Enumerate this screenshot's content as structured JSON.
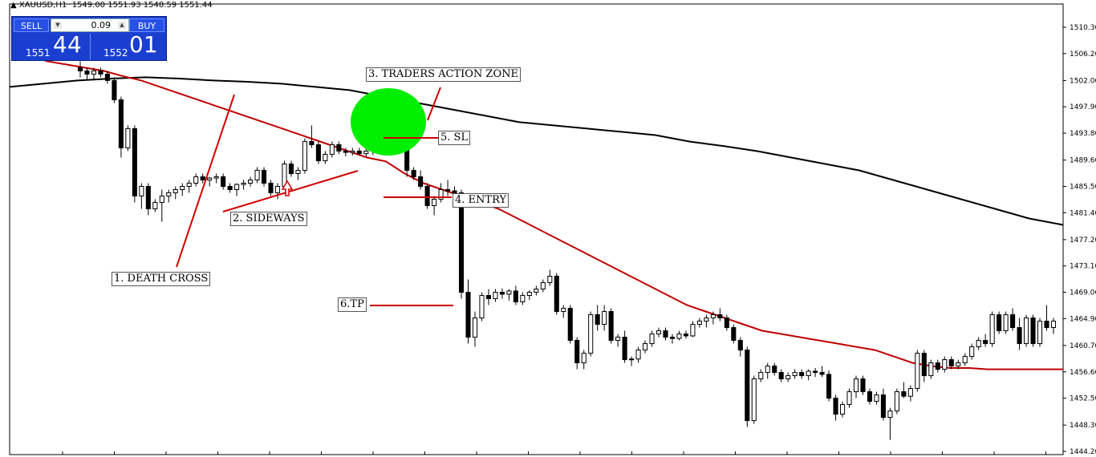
{
  "info": {
    "symbol": "XAUUSD,H1",
    "ohlc": "1549.00 1551.93 1548.59 1551.44"
  },
  "trade_panel": {
    "sell_label": "SELL",
    "buy_label": "BUY",
    "lot": "0.09",
    "bid_small": "1551",
    "bid_big": "44",
    "ask_small": "1552",
    "ask_big": "01"
  },
  "annotations": {
    "death_cross": "1. DEATH CROSS",
    "sideways": "2. SIDEWAYS",
    "action_zone": "3. TRADERS ACTION ZONE",
    "entry": "4. ENTRY",
    "sl": "5. SL",
    "tp": "6.TP"
  },
  "colors": {
    "background": "#ffffff",
    "candle": "#000000",
    "ma_fast": "#c00000",
    "ma_slow": "#000000",
    "zone": "#00ee00",
    "annotation_line": "#d00000"
  },
  "chart_data": {
    "type": "candlestick",
    "symbol": "XAUUSD",
    "timeframe": "H1",
    "ylim": [
      1444.2,
      1512.5
    ],
    "y_ticks": [
      "1510.30",
      "1506.20",
      "1502.00",
      "1497.90",
      "1493.80",
      "1489.60",
      "1485.50",
      "1481.40",
      "1477.20",
      "1473.10",
      "1469.00",
      "1464.90",
      "1460.70",
      "1456.60",
      "1452.50",
      "1448.30",
      "1444.20"
    ],
    "candles": [
      [
        1504,
        1505,
        1502.5,
        1503.5
      ],
      [
        1503.5,
        1504,
        1502,
        1503
      ],
      [
        1503,
        1504,
        1502,
        1503.5
      ],
      [
        1503.5,
        1504,
        1502.5,
        1503
      ],
      [
        1503,
        1503.5,
        1501.5,
        1502
      ],
      [
        1502,
        1502.5,
        1498.5,
        1499
      ],
      [
        1499,
        1499.5,
        1490,
        1491.5
      ],
      [
        1491.5,
        1495,
        1491,
        1494.5
      ],
      [
        1494.5,
        1495,
        1483,
        1484
      ],
      [
        1484,
        1486,
        1482,
        1485.5
      ],
      [
        1485.5,
        1486,
        1481,
        1482
      ],
      [
        1482,
        1483.5,
        1481.5,
        1483
      ],
      [
        1483,
        1485,
        1480,
        1484
      ],
      [
        1484,
        1485,
        1483,
        1484.5
      ],
      [
        1484.5,
        1485.5,
        1483.5,
        1485
      ],
      [
        1485,
        1486,
        1484,
        1485.5
      ],
      [
        1485.5,
        1486.5,
        1484.5,
        1486
      ],
      [
        1486,
        1487.5,
        1485.5,
        1487
      ],
      [
        1487,
        1487.5,
        1486,
        1486.5
      ],
      [
        1486.5,
        1487,
        1485.5,
        1486.8
      ],
      [
        1486.8,
        1487.5,
        1486,
        1487
      ],
      [
        1487,
        1487.5,
        1485,
        1485.5
      ],
      [
        1485.5,
        1486,
        1484.5,
        1485
      ],
      [
        1485,
        1486,
        1484,
        1485.8
      ],
      [
        1485.8,
        1486.5,
        1485,
        1486
      ],
      [
        1486,
        1487,
        1485.5,
        1486.5
      ],
      [
        1486.5,
        1488.5,
        1486,
        1488
      ],
      [
        1488,
        1488.5,
        1485.5,
        1486
      ],
      [
        1486,
        1486.5,
        1484,
        1484.5
      ],
      [
        1484.5,
        1486,
        1483.5,
        1485.5
      ],
      [
        1485.5,
        1489.5,
        1485,
        1489
      ],
      [
        1489,
        1489.5,
        1487,
        1487.5
      ],
      [
        1487.5,
        1488.5,
        1486.5,
        1488
      ],
      [
        1488,
        1493,
        1487.5,
        1492.5
      ],
      [
        1492.5,
        1495,
        1491.5,
        1492
      ],
      [
        1492,
        1492.5,
        1489,
        1489.5
      ],
      [
        1489.5,
        1491,
        1489,
        1490.5
      ],
      [
        1490.5,
        1492.5,
        1490,
        1492
      ],
      [
        1492,
        1492.5,
        1490.5,
        1491
      ],
      [
        1491,
        1491.5,
        1490.2,
        1490.8
      ],
      [
        1490.8,
        1491.5,
        1490.3,
        1491
      ],
      [
        1491,
        1491.5,
        1490.3,
        1490.6
      ],
      [
        1490.6,
        1491.4,
        1490.2,
        1491
      ],
      [
        1491,
        1491.6,
        1490.4,
        1491.3
      ],
      [
        1491.3,
        1491.8,
        1490.6,
        1491.5
      ],
      [
        1491.5,
        1492,
        1490.8,
        1491.2
      ],
      [
        1491.2,
        1492.2,
        1490.6,
        1491.8
      ],
      [
        1491.8,
        1492.5,
        1491,
        1492.1
      ],
      [
        1492.1,
        1493,
        1487,
        1488
      ],
      [
        1488,
        1488.5,
        1486.5,
        1487
      ],
      [
        1487,
        1488,
        1485,
        1485.5
      ],
      [
        1485.5,
        1486,
        1482,
        1482.5
      ],
      [
        1482.5,
        1484,
        1481,
        1483.5
      ],
      [
        1483.5,
        1486,
        1483,
        1485
      ],
      [
        1485,
        1486.5,
        1484,
        1484.8
      ],
      [
        1484.8,
        1485.5,
        1483.8,
        1484.5
      ],
      [
        1484.5,
        1485,
        1468,
        1469
      ],
      [
        1469,
        1471,
        1461,
        1462
      ],
      [
        1462,
        1466,
        1460.5,
        1465
      ],
      [
        1465,
        1469,
        1464.5,
        1468.5
      ],
      [
        1468.5,
        1469.5,
        1467,
        1468
      ],
      [
        1468,
        1469.5,
        1467.5,
        1469
      ],
      [
        1469,
        1469.6,
        1468,
        1468.7
      ],
      [
        1468.7,
        1469.5,
        1467.7,
        1469.2
      ],
      [
        1469.2,
        1470,
        1467,
        1467.5
      ],
      [
        1467.5,
        1469,
        1467,
        1468.5
      ],
      [
        1468.5,
        1469.3,
        1467.8,
        1469
      ],
      [
        1469,
        1470,
        1468.5,
        1469.5
      ],
      [
        1469.5,
        1471,
        1469,
        1470.5
      ],
      [
        1470.5,
        1472.5,
        1470,
        1471.5
      ],
      [
        1471.5,
        1472,
        1465.5,
        1466
      ],
      [
        1466,
        1467,
        1465,
        1466.5
      ],
      [
        1466.5,
        1467,
        1461,
        1461.5
      ],
      [
        1461.5,
        1462,
        1457,
        1458
      ],
      [
        1458,
        1460,
        1457,
        1459.5
      ],
      [
        1459.5,
        1466,
        1459,
        1465.5
      ],
      [
        1465.5,
        1467,
        1463,
        1464
      ],
      [
        1464,
        1467,
        1463,
        1466
      ],
      [
        1466,
        1466.5,
        1461,
        1461.5
      ],
      [
        1461.5,
        1462.5,
        1460.5,
        1462
      ],
      [
        1462,
        1463,
        1458,
        1458.5
      ],
      [
        1458.5,
        1459,
        1457.5,
        1458.6
      ],
      [
        1458.6,
        1460.5,
        1458,
        1460
      ],
      [
        1460,
        1461.5,
        1459.5,
        1461
      ],
      [
        1461,
        1463,
        1460.5,
        1462.5
      ],
      [
        1462.5,
        1463.5,
        1462,
        1463
      ],
      [
        1463,
        1463.5,
        1461.5,
        1462
      ],
      [
        1462,
        1462.5,
        1461,
        1461.8
      ],
      [
        1461.8,
        1463,
        1461.5,
        1462.5
      ],
      [
        1462.5,
        1463,
        1461.8,
        1462.2
      ],
      [
        1462.2,
        1464.5,
        1462,
        1464
      ],
      [
        1464,
        1465,
        1463.5,
        1464.5
      ],
      [
        1464.5,
        1465.5,
        1463.5,
        1465
      ],
      [
        1465,
        1466,
        1464,
        1465.5
      ],
      [
        1465.5,
        1466.5,
        1464.5,
        1465
      ],
      [
        1465,
        1465.5,
        1463,
        1463.5
      ],
      [
        1463.5,
        1464,
        1461,
        1461.5
      ],
      [
        1461.5,
        1462,
        1459,
        1460
      ],
      [
        1460,
        1460.5,
        1448,
        1449
      ],
      [
        1449,
        1456,
        1448.5,
        1455.5
      ],
      [
        1455.5,
        1457,
        1455,
        1456.5
      ],
      [
        1456.5,
        1458,
        1455.5,
        1457.5
      ],
      [
        1457.5,
        1458,
        1456,
        1456.5
      ],
      [
        1456.5,
        1457,
        1455,
        1455.5
      ],
      [
        1455.5,
        1456.5,
        1455,
        1456
      ],
      [
        1456,
        1457,
        1455.5,
        1456.5
      ],
      [
        1456.5,
        1457,
        1455.5,
        1456
      ],
      [
        1456,
        1457,
        1455.3,
        1456.7
      ],
      [
        1456.7,
        1457.2,
        1455.8,
        1456.5
      ],
      [
        1456.5,
        1457.5,
        1455.8,
        1456.2
      ],
      [
        1456.2,
        1456.8,
        1452,
        1452.5
      ],
      [
        1452.5,
        1453,
        1449,
        1450
      ],
      [
        1450,
        1452,
        1449.5,
        1451.5
      ],
      [
        1451.5,
        1454,
        1451,
        1453.5
      ],
      [
        1453.5,
        1456,
        1452.5,
        1455.5
      ],
      [
        1455.5,
        1456,
        1453,
        1453.5
      ],
      [
        1453.5,
        1454,
        1451.5,
        1452
      ],
      [
        1452,
        1453.5,
        1451.5,
        1453
      ],
      [
        1453,
        1454,
        1449,
        1449.5
      ],
      [
        1449.5,
        1451,
        1446,
        1450.5
      ],
      [
        1450.5,
        1454,
        1450,
        1453.5
      ],
      [
        1453.5,
        1455,
        1452.5,
        1452.8
      ],
      [
        1452.8,
        1454.5,
        1452,
        1454
      ],
      [
        1454,
        1460,
        1453.5,
        1459.5
      ],
      [
        1459.5,
        1460,
        1455,
        1456
      ],
      [
        1456,
        1458.5,
        1455.5,
        1458
      ],
      [
        1458,
        1458.5,
        1456.5,
        1457
      ],
      [
        1457,
        1459,
        1456.5,
        1458.5
      ],
      [
        1458.5,
        1459,
        1457,
        1457.5
      ],
      [
        1457.5,
        1458.5,
        1457,
        1458
      ],
      [
        1458,
        1459.5,
        1457.5,
        1459
      ],
      [
        1459,
        1461,
        1458.5,
        1460.5
      ],
      [
        1460.5,
        1462,
        1460,
        1461.5
      ],
      [
        1461.5,
        1462.5,
        1460.5,
        1461
      ],
      [
        1461,
        1466,
        1460.5,
        1465.5
      ],
      [
        1465.5,
        1466,
        1462.5,
        1463
      ],
      [
        1463,
        1466,
        1462.5,
        1465.5
      ],
      [
        1465.5,
        1466.5,
        1463,
        1463.5
      ],
      [
        1463.5,
        1465,
        1460,
        1461
      ],
      [
        1461,
        1465.5,
        1460.5,
        1465
      ],
      [
        1465,
        1465.5,
        1460.5,
        1461
      ],
      [
        1461,
        1465,
        1460.5,
        1464.5
      ],
      [
        1464.5,
        1467,
        1463,
        1463.5
      ],
      [
        1463.5,
        1465,
        1462.5,
        1464.5
      ]
    ],
    "ma_fast": [
      [
        1,
        1506
      ],
      [
        2,
        1505
      ],
      [
        3,
        1504.5
      ],
      [
        4,
        1504
      ],
      [
        5,
        1503.5
      ],
      [
        6,
        1502.7
      ],
      [
        7,
        1502
      ],
      [
        8,
        1501
      ],
      [
        9,
        1500
      ],
      [
        10,
        1499
      ],
      [
        11,
        1498
      ],
      [
        12,
        1497
      ],
      [
        13,
        1496
      ],
      [
        14,
        1495
      ],
      [
        15,
        1494
      ],
      [
        16,
        1493
      ],
      [
        17,
        1492
      ],
      [
        18,
        1491
      ],
      [
        19,
        1490
      ],
      [
        20,
        1489.4
      ],
      [
        21,
        1487.5
      ],
      [
        22,
        1486
      ],
      [
        23,
        1485
      ],
      [
        24,
        1484
      ],
      [
        25,
        1483
      ],
      [
        26,
        1482
      ],
      [
        27,
        1480.5
      ],
      [
        28,
        1479
      ],
      [
        29,
        1477.5
      ],
      [
        30,
        1476
      ],
      [
        31,
        1474.5
      ],
      [
        32,
        1473
      ],
      [
        33,
        1471.5
      ],
      [
        34,
        1470
      ],
      [
        35,
        1468.5
      ],
      [
        36,
        1467
      ],
      [
        37,
        1466
      ],
      [
        38,
        1465
      ],
      [
        39,
        1464
      ],
      [
        40,
        1463
      ],
      [
        41,
        1462.5
      ],
      [
        42,
        1462
      ],
      [
        43,
        1461.5
      ],
      [
        44,
        1461
      ],
      [
        45,
        1460.5
      ],
      [
        46,
        1460
      ],
      [
        47,
        1459
      ],
      [
        48,
        1458
      ],
      [
        49,
        1457.5
      ],
      [
        50,
        1457.2
      ],
      [
        51,
        1457.2
      ],
      [
        52,
        1457
      ],
      [
        53,
        1457
      ],
      [
        54,
        1457
      ],
      [
        55,
        1457
      ],
      [
        56,
        1457
      ]
    ],
    "ma_slow": [
      [
        0,
        1501
      ],
      [
        1,
        1501.5
      ],
      [
        2,
        1502
      ],
      [
        3,
        1502.3
      ],
      [
        4,
        1502.5
      ],
      [
        5,
        1502.3
      ],
      [
        6,
        1502
      ],
      [
        7,
        1501.8
      ],
      [
        8,
        1501.5
      ],
      [
        9,
        1501
      ],
      [
        10,
        1500.5
      ],
      [
        11,
        1499.5
      ],
      [
        12,
        1498.5
      ],
      [
        13,
        1497.5
      ],
      [
        14,
        1496.5
      ],
      [
        15,
        1495.5
      ],
      [
        16,
        1495
      ],
      [
        17,
        1494.5
      ],
      [
        18,
        1494
      ],
      [
        19,
        1493.5
      ],
      [
        20,
        1492.5
      ],
      [
        21,
        1491.8
      ],
      [
        22,
        1491
      ],
      [
        23,
        1490
      ],
      [
        24,
        1489
      ],
      [
        25,
        1488
      ],
      [
        26,
        1486.5
      ],
      [
        27,
        1485
      ],
      [
        28,
        1483.5
      ],
      [
        29,
        1482
      ],
      [
        30,
        1480.5
      ],
      [
        31,
        1479.5
      ]
    ]
  }
}
